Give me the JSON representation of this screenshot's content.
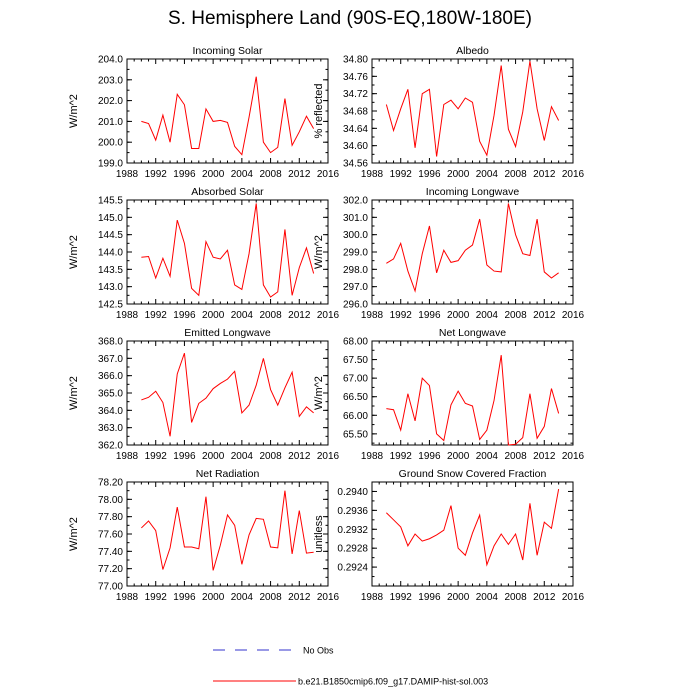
{
  "title": "S. Hemisphere Land (90S-EQ,180W-180E)",
  "legend": {
    "obs_label": "No Obs",
    "model_label": "b.e21.B1850cmip6.f09_g17.DAMIP-hist-sol.003"
  },
  "colors": {
    "model": "#ff0000",
    "obs": "#3333cc",
    "axis": "#000000"
  },
  "chart_data": [
    {
      "type": "line",
      "title": "Incoming Solar",
      "ylabel": "W/m^2",
      "xlim": [
        1988,
        2016
      ],
      "ylim": [
        199.0,
        204.0
      ],
      "xticks": [
        "1988",
        "1992",
        "1996",
        "2000",
        "2004",
        "2008",
        "2012",
        "2016"
      ],
      "yticks": [
        "199.0",
        "200.0",
        "201.0",
        "202.0",
        "203.0",
        "204.0"
      ],
      "x": [
        1990,
        1991,
        1992,
        1993,
        1994,
        1995,
        1996,
        1997,
        1998,
        1999,
        2000,
        2001,
        2002,
        2003,
        2004,
        2005,
        2006,
        2007,
        2008,
        2009,
        2010,
        2011,
        2012,
        2013,
        2014
      ],
      "series": [
        {
          "values": [
            201.0,
            200.9,
            200.1,
            201.3,
            200.0,
            202.3,
            201.8,
            199.7,
            199.7,
            201.6,
            201.0,
            201.05,
            200.95,
            199.8,
            199.4,
            201.2,
            203.15,
            200.0,
            199.5,
            199.75,
            202.1,
            199.85,
            200.5,
            201.25,
            200.65
          ]
        }
      ]
    },
    {
      "type": "line",
      "title": "Albedo",
      "ylabel": "% reflected",
      "xlim": [
        1988,
        2016
      ],
      "ylim": [
        34.56,
        34.8
      ],
      "xticks": [
        "1988",
        "1992",
        "1996",
        "2000",
        "2004",
        "2008",
        "2012",
        "2016"
      ],
      "yticks": [
        "34.56",
        "34.60",
        "34.64",
        "34.68",
        "34.72",
        "34.76",
        "34.80"
      ],
      "x": [
        1990,
        1991,
        1992,
        1993,
        1994,
        1995,
        1996,
        1997,
        1998,
        1999,
        2000,
        2001,
        2002,
        2003,
        2004,
        2005,
        2006,
        2007,
        2008,
        2009,
        2010,
        2011,
        2012,
        2013,
        2014
      ],
      "series": [
        {
          "values": [
            34.695,
            34.635,
            34.685,
            34.73,
            34.595,
            34.72,
            34.73,
            34.575,
            34.695,
            34.705,
            34.685,
            34.71,
            34.7,
            34.61,
            34.578,
            34.67,
            34.785,
            34.638,
            34.598,
            34.678,
            34.795,
            34.685,
            34.612,
            34.69,
            34.658
          ]
        }
      ]
    },
    {
      "type": "line",
      "title": "Absorbed Solar",
      "ylabel": "W/m^2",
      "xlim": [
        1988,
        2016
      ],
      "ylim": [
        142.5,
        145.5
      ],
      "xticks": [
        "1988",
        "1992",
        "1996",
        "2000",
        "2004",
        "2008",
        "2012",
        "2016"
      ],
      "yticks": [
        "142.5",
        "143.0",
        "143.5",
        "144.0",
        "144.5",
        "145.0",
        "145.5"
      ],
      "x": [
        1990,
        1991,
        1992,
        1993,
        1994,
        1995,
        1996,
        1997,
        1998,
        1999,
        2000,
        2001,
        2002,
        2003,
        2004,
        2005,
        2006,
        2007,
        2008,
        2009,
        2010,
        2011,
        2012,
        2013,
        2014
      ],
      "series": [
        {
          "values": [
            143.85,
            143.87,
            143.25,
            143.82,
            143.3,
            144.92,
            144.25,
            142.95,
            142.75,
            144.3,
            143.85,
            143.8,
            144.05,
            143.05,
            142.92,
            143.95,
            145.4,
            143.05,
            142.7,
            142.85,
            144.65,
            142.75,
            143.55,
            144.12,
            143.38
          ]
        }
      ]
    },
    {
      "type": "line",
      "title": "Incoming Longwave",
      "ylabel": "W/m^2",
      "xlim": [
        1988,
        2016
      ],
      "ylim": [
        296.0,
        302.0
      ],
      "xticks": [
        "1988",
        "1992",
        "1996",
        "2000",
        "2004",
        "2008",
        "2012",
        "2016"
      ],
      "yticks": [
        "296.0",
        "297.0",
        "298.0",
        "299.0",
        "300.0",
        "301.0",
        "302.0"
      ],
      "x": [
        1990,
        1991,
        1992,
        1993,
        1994,
        1995,
        1996,
        1997,
        1998,
        1999,
        2000,
        2001,
        2002,
        2003,
        2004,
        2005,
        2006,
        2007,
        2008,
        2009,
        2010,
        2011,
        2012,
        2013,
        2014
      ],
      "series": [
        {
          "values": [
            298.35,
            298.6,
            299.5,
            297.9,
            296.75,
            298.9,
            300.5,
            297.8,
            299.1,
            298.4,
            298.5,
            299.1,
            299.4,
            300.9,
            298.25,
            297.9,
            297.85,
            301.8,
            300.0,
            298.9,
            298.8,
            300.9,
            297.85,
            297.5,
            297.8
          ]
        }
      ]
    },
    {
      "type": "line",
      "title": "Emitted Longwave",
      "ylabel": "W/m^2",
      "xlim": [
        1988,
        2016
      ],
      "ylim": [
        362.0,
        368.0
      ],
      "xticks": [
        "1988",
        "1992",
        "1996",
        "2000",
        "2004",
        "2008",
        "2012",
        "2016"
      ],
      "yticks": [
        "362.0",
        "363.0",
        "364.0",
        "365.0",
        "366.0",
        "367.0",
        "368.0"
      ],
      "x": [
        1990,
        1991,
        1992,
        1993,
        1994,
        1995,
        1996,
        1997,
        1998,
        1999,
        2000,
        2001,
        2002,
        2003,
        2004,
        2005,
        2006,
        2007,
        2008,
        2009,
        2010,
        2011,
        2012,
        2013,
        2014
      ],
      "series": [
        {
          "values": [
            364.6,
            364.75,
            365.1,
            364.45,
            362.5,
            366.1,
            367.3,
            363.3,
            364.4,
            364.7,
            365.25,
            365.55,
            365.8,
            366.25,
            363.85,
            364.3,
            365.45,
            367.0,
            365.2,
            364.3,
            365.3,
            366.2,
            363.65,
            364.2,
            363.85
          ]
        }
      ]
    },
    {
      "type": "line",
      "title": "Net Longwave",
      "ylabel": "W/m^2",
      "xlim": [
        1988,
        2016
      ],
      "ylim": [
        65.2,
        68.0
      ],
      "xticks": [
        "1988",
        "1992",
        "1996",
        "2000",
        "2004",
        "2008",
        "2012",
        "2016"
      ],
      "yticks": [
        "65.50",
        "66.00",
        "66.50",
        "67.00",
        "67.50",
        "68.00"
      ],
      "ytickvals": [
        65.5,
        66.0,
        66.5,
        67.0,
        67.5,
        68.0
      ],
      "x": [
        1990,
        1991,
        1992,
        1993,
        1994,
        1995,
        1996,
        1997,
        1998,
        1999,
        2000,
        2001,
        2002,
        2003,
        2004,
        2005,
        2006,
        2007,
        2008,
        2009,
        2010,
        2011,
        2012,
        2013,
        2014
      ],
      "series": [
        {
          "values": [
            66.18,
            66.15,
            65.6,
            66.58,
            65.85,
            67.0,
            66.8,
            65.5,
            65.32,
            66.28,
            66.65,
            66.32,
            66.25,
            65.35,
            65.6,
            66.4,
            67.62,
            65.2,
            65.22,
            65.4,
            66.58,
            65.38,
            65.7,
            66.72,
            66.05
          ]
        }
      ]
    },
    {
      "type": "line",
      "title": "Net Radiation",
      "ylabel": "W/m^2",
      "xlim": [
        1988,
        2016
      ],
      "ylim": [
        77.0,
        78.2
      ],
      "xticks": [
        "1988",
        "1992",
        "1996",
        "2000",
        "2004",
        "2008",
        "2012",
        "2016"
      ],
      "yticks": [
        "77.00",
        "77.20",
        "77.40",
        "77.60",
        "77.80",
        "78.00",
        "78.20"
      ],
      "x": [
        1990,
        1991,
        1992,
        1993,
        1994,
        1995,
        1996,
        1997,
        1998,
        1999,
        2000,
        2001,
        2002,
        2003,
        2004,
        2005,
        2006,
        2007,
        2008,
        2009,
        2010,
        2011,
        2012,
        2013,
        2014
      ],
      "series": [
        {
          "values": [
            77.67,
            77.75,
            77.64,
            77.19,
            77.44,
            77.91,
            77.45,
            77.45,
            77.43,
            78.03,
            77.18,
            77.47,
            77.82,
            77.7,
            77.25,
            77.59,
            77.78,
            77.77,
            77.45,
            77.44,
            78.1,
            77.37,
            77.87,
            77.38,
            77.39
          ]
        }
      ]
    },
    {
      "type": "line",
      "title": "Ground Snow Covered Fraction",
      "ylabel": "unitless",
      "xlim": [
        1988,
        2016
      ],
      "ylim": [
        0.292,
        0.2942
      ],
      "xticks": [
        "1988",
        "1992",
        "1996",
        "2000",
        "2004",
        "2008",
        "2012",
        "2016"
      ],
      "yticks": [
        "0.2924",
        "0.2928",
        "0.2932",
        "0.2936",
        "0.2940"
      ],
      "ytickvals": [
        0.2924,
        0.2928,
        0.2932,
        0.2936,
        0.294
      ],
      "x": [
        1990,
        1991,
        1992,
        1993,
        1994,
        1995,
        1996,
        1997,
        1998,
        1999,
        2000,
        2001,
        2002,
        2003,
        2004,
        2005,
        2006,
        2007,
        2008,
        2009,
        2010,
        2011,
        2012,
        2013,
        2014
      ],
      "series": [
        {
          "values": [
            0.29355,
            0.2934,
            0.29325,
            0.29285,
            0.2931,
            0.29295,
            0.293,
            0.29308,
            0.29318,
            0.2937,
            0.2928,
            0.29265,
            0.29312,
            0.2935,
            0.29245,
            0.29285,
            0.2931,
            0.29288,
            0.2931,
            0.29255,
            0.29375,
            0.29265,
            0.29335,
            0.29322,
            0.29405
          ]
        }
      ]
    }
  ]
}
